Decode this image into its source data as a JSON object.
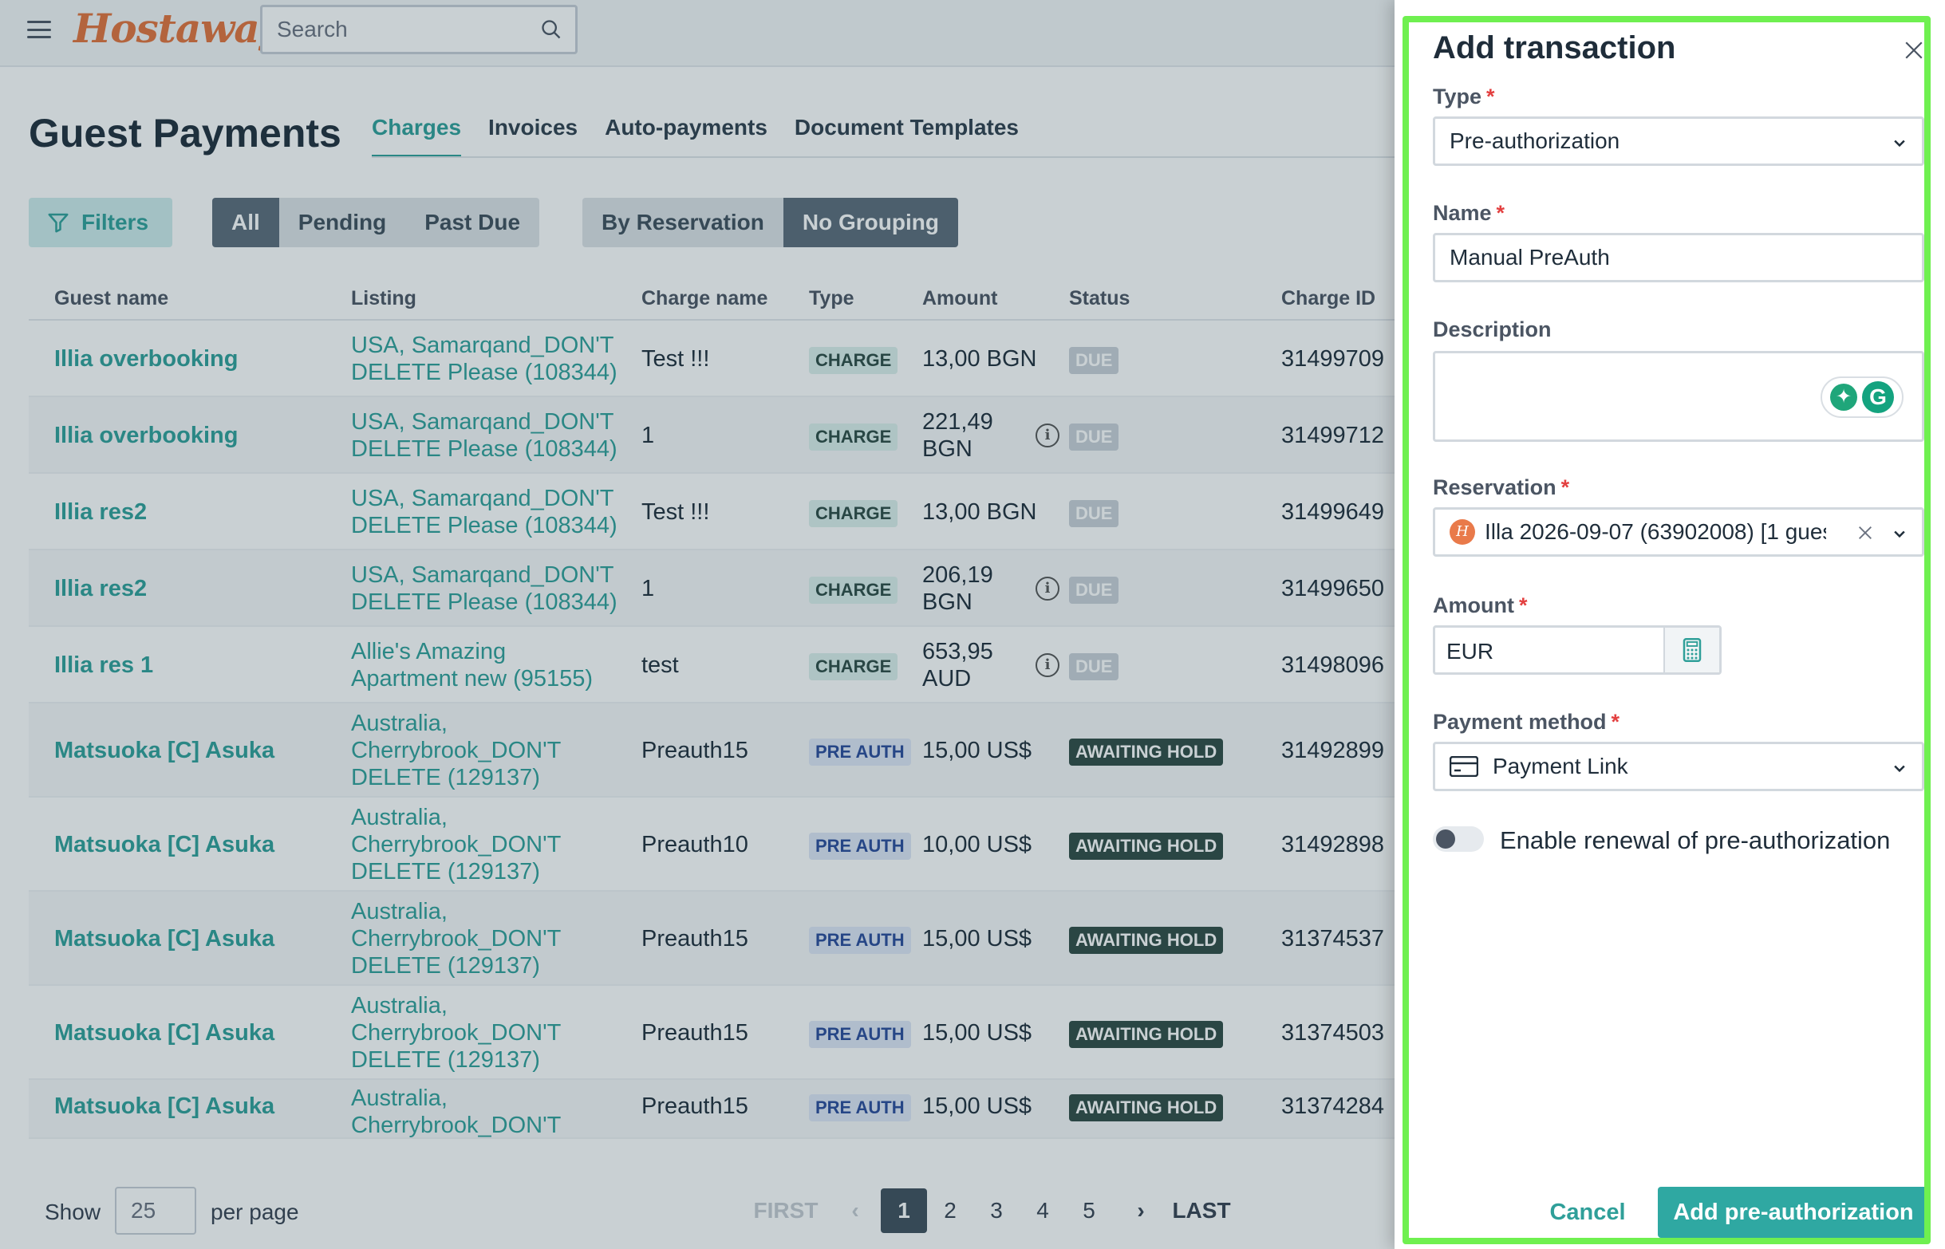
{
  "header": {
    "logo_text": "Hostaway",
    "search_placeholder": "Search"
  },
  "page": {
    "title": "Guest Payments",
    "tabs": [
      {
        "label": "Charges",
        "active": true
      },
      {
        "label": "Invoices",
        "active": false
      },
      {
        "label": "Auto-payments",
        "active": false
      },
      {
        "label": "Document Templates",
        "active": false
      }
    ]
  },
  "toolbar": {
    "filters_label": "Filters",
    "status_filters": [
      {
        "label": "All",
        "active": true
      },
      {
        "label": "Pending",
        "active": false
      },
      {
        "label": "Past Due",
        "active": false
      }
    ],
    "grouping": [
      {
        "label": "By Reservation",
        "active": false
      },
      {
        "label": "No Grouping",
        "active": true
      }
    ]
  },
  "table": {
    "columns": [
      "Guest name",
      "Listing",
      "Charge name",
      "Type",
      "Amount",
      "Status",
      "Charge ID"
    ],
    "rows": [
      {
        "guest": "Illia overbooking",
        "listing": [
          "USA, Samarqand_DON'T",
          "DELETE Please (108344)"
        ],
        "charge_name": "Test !!!",
        "type": "CHARGE",
        "amount": [
          "13,00 BGN"
        ],
        "info": false,
        "status": "DUE",
        "charge_id": "31499709"
      },
      {
        "guest": "Illia overbooking",
        "listing": [
          "USA, Samarqand_DON'T",
          "DELETE Please (108344)"
        ],
        "charge_name": "1",
        "type": "CHARGE",
        "amount": [
          "221,49",
          "BGN"
        ],
        "info": true,
        "status": "DUE",
        "charge_id": "31499712"
      },
      {
        "guest": "Illia res2",
        "listing": [
          "USA, Samarqand_DON'T",
          "DELETE Please (108344)"
        ],
        "charge_name": "Test !!!",
        "type": "CHARGE",
        "amount": [
          "13,00 BGN"
        ],
        "info": false,
        "status": "DUE",
        "charge_id": "31499649"
      },
      {
        "guest": "Illia res2",
        "listing": [
          "USA, Samarqand_DON'T",
          "DELETE Please (108344)"
        ],
        "charge_name": "1",
        "type": "CHARGE",
        "amount": [
          "206,19",
          "BGN"
        ],
        "info": true,
        "status": "DUE",
        "charge_id": "31499650"
      },
      {
        "guest": "Illia res 1",
        "listing": [
          "Allie's Amazing",
          "Apartment new (95155)"
        ],
        "charge_name": "test",
        "type": "CHARGE",
        "amount": [
          "653,95",
          "AUD"
        ],
        "info": true,
        "status": "DUE",
        "charge_id": "31498096"
      },
      {
        "guest": "Matsuoka [C] Asuka",
        "listing": [
          "Australia,",
          "Cherrybrook_DON'T",
          "DELETE (129137)"
        ],
        "charge_name": "Preauth15",
        "type": "PRE AUTH",
        "amount": [
          "15,00 US$"
        ],
        "info": false,
        "status": "AWAITING HOLD",
        "charge_id": "31492899"
      },
      {
        "guest": "Matsuoka [C] Asuka",
        "listing": [
          "Australia,",
          "Cherrybrook_DON'T",
          "DELETE (129137)"
        ],
        "charge_name": "Preauth10",
        "type": "PRE AUTH",
        "amount": [
          "10,00 US$"
        ],
        "info": false,
        "status": "AWAITING HOLD",
        "charge_id": "31492898"
      },
      {
        "guest": "Matsuoka [C] Asuka",
        "listing": [
          "Australia,",
          "Cherrybrook_DON'T",
          "DELETE (129137)"
        ],
        "charge_name": "Preauth15",
        "type": "PRE AUTH",
        "amount": [
          "15,00 US$"
        ],
        "info": false,
        "status": "AWAITING HOLD",
        "charge_id": "31374537"
      },
      {
        "guest": "Matsuoka [C] Asuka",
        "listing": [
          "Australia,",
          "Cherrybrook_DON'T",
          "DELETE (129137)"
        ],
        "charge_name": "Preauth15",
        "type": "PRE AUTH",
        "amount": [
          "15,00 US$"
        ],
        "info": false,
        "status": "AWAITING HOLD",
        "charge_id": "31374503"
      },
      {
        "guest": "Matsuoka [C] Asuka",
        "listing": [
          "Australia,",
          "Cherrybrook_DON'T"
        ],
        "charge_name": "Preauth15",
        "type": "PRE AUTH",
        "amount": [
          "15,00 US$"
        ],
        "info": false,
        "status": "AWAITING HOLD",
        "charge_id": "31374284"
      }
    ]
  },
  "footer": {
    "show_label": "Show",
    "per_page_value": "25",
    "per_page_label": "per page",
    "first_label": "FIRST",
    "prev_label": "‹",
    "pages": [
      "1",
      "2",
      "3",
      "4",
      "5"
    ],
    "current_page": "1",
    "next_label": "›",
    "last_label": "LAST"
  },
  "drawer": {
    "title": "Add transaction",
    "type_label": "Type",
    "type_value": "Pre-authorization",
    "name_label": "Name",
    "name_value": "Manual PreAuth",
    "description_label": "Description",
    "description_value": "",
    "reservation_label": "Reservation",
    "reservation_value": "Illa 2026-09-07 (63902008) [1 gues",
    "amount_label": "Amount",
    "amount_currency": "EUR",
    "payment_method_label": "Payment method",
    "payment_method_value": "Payment Link",
    "renewal_label": "Enable renewal of pre-authorization",
    "renewal_enabled": false,
    "required_mark": "*",
    "cancel_label": "Cancel",
    "submit_label": "Add pre-authorization"
  },
  "colors": {
    "accent": "#2f9f99",
    "highlight_frame": "#6ff050",
    "status_due": "#c9d0d8",
    "status_awaiting": "#2f4a44"
  }
}
